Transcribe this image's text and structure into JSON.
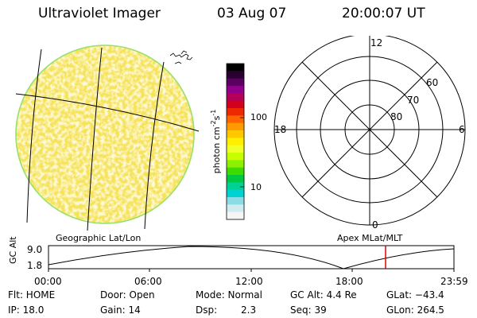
{
  "header": {
    "title": "Ultraviolet Imager",
    "date": "03 Aug 07",
    "time": "20:00:07 UT"
  },
  "image_panel": {
    "fill_color": "#f6e35a",
    "speckle_color": "#fffbe0",
    "rim_color": "#9ae06a",
    "caption": "Geographic Lat/Lon"
  },
  "colorbar": {
    "unit_label": "photon cm",
    "unit_exp1": "-2",
    "unit_s": "s",
    "unit_exp2": "-1",
    "tick_100": "100",
    "tick_10": "10",
    "colors": [
      "#000000",
      "#2a0030",
      "#5a0060",
      "#90008a",
      "#b40056",
      "#d2001e",
      "#ec2a00",
      "#ff6400",
      "#ff9a00",
      "#ffc800",
      "#fff000",
      "#f0ff28",
      "#c8ff00",
      "#8cf000",
      "#3cdc00",
      "#00c840",
      "#00d296",
      "#00d2d2",
      "#8cdce6",
      "#d2ebf0",
      "#f5f5f5"
    ]
  },
  "polar_plot": {
    "caption": "Apex MLat/MLT",
    "mlt_12": "12",
    "mlt_18": "18",
    "mlt_6": "6",
    "mlt_0": "0",
    "lat_60": "60",
    "lat_70": "70",
    "lat_80": "80"
  },
  "altitude_plot": {
    "ylabel": "GC Alt",
    "ytick_top": "9.0",
    "ytick_bottom": "1.8",
    "xticks": [
      "00:00",
      "06:00",
      "12:00",
      "18:00",
      "23:59"
    ],
    "current_marker_color": "#e00000"
  },
  "footer": {
    "flt": "Flt: HOME",
    "ip": "IP: 18.0",
    "door": "Door: Open",
    "gain": "Gain: 14",
    "mode": "Mode: Normal",
    "dsp_label": "Dsp:",
    "dsp_value": "2.3",
    "gc_alt": "GC Alt: 4.4 Re",
    "seq": "Seq: 39",
    "glat": "GLat: −43.4",
    "glon": "GLon: 264.5"
  }
}
